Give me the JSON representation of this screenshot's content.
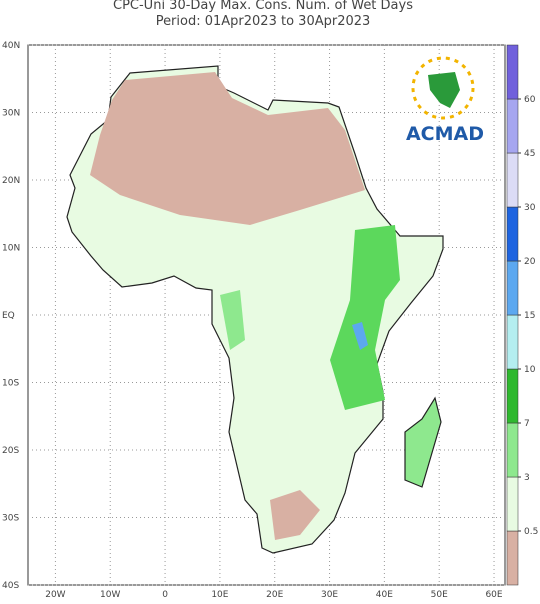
{
  "map": {
    "title": "CPC-Uni 30-Day Max. Cons. Num. of Wet Days",
    "subtitle": "Period: 01Apr2023 to 30Apr2023",
    "logo_text": "ACMAD",
    "lon_range": [
      -25,
      62
    ],
    "lat_range": [
      -40,
      40
    ],
    "lon_ticks": [
      {
        "value": -20,
        "label": "20W"
      },
      {
        "value": -10,
        "label": "10W"
      },
      0,
      {
        "value": 10,
        "label": "10E"
      },
      {
        "value": 20,
        "label": "20E"
      },
      {
        "value": 30,
        "label": "30E"
      },
      {
        "value": 40,
        "label": "40E"
      },
      {
        "value": 50,
        "label": "50E"
      },
      {
        "value": 60,
        "label": "60E"
      }
    ],
    "lat_ticks": [
      {
        "value": -40,
        "label": "40S"
      },
      {
        "value": -30,
        "label": "30S"
      },
      {
        "value": -20,
        "label": "20S"
      },
      {
        "value": -10,
        "label": "10S"
      },
      {
        "value": 0,
        "label": "EQ"
      },
      {
        "value": 10,
        "label": "10N"
      },
      {
        "value": 20,
        "label": "20N"
      },
      {
        "value": 30,
        "label": "30N"
      },
      {
        "value": 40,
        "label": "40N"
      }
    ],
    "grid": true,
    "colorbar": {
      "levels": [
        0.5,
        3,
        7,
        10,
        15,
        20,
        30,
        45,
        60
      ],
      "colors": [
        "#d8b0a3",
        "#e8fbe2",
        "#8ee88e",
        "#2fb82f",
        "#b4eef0",
        "#5ca8f0",
        "#1e64e0",
        "#dcdcf6",
        "#a6a6f0",
        "#7060dc"
      ]
    }
  }
}
